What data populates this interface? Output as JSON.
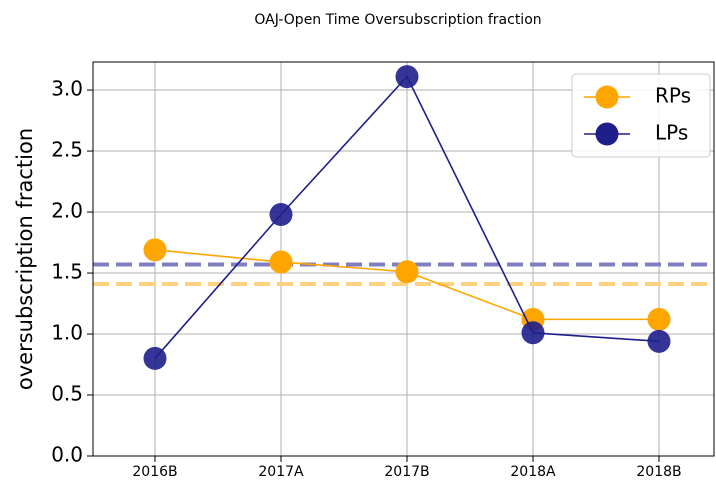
{
  "chart_data": {
    "type": "line",
    "title": "OAJ-Open Time Oversubscription fraction",
    "y_label": "oversubscription fraction",
    "categories": [
      "2016B",
      "2017A",
      "2017B",
      "2018A",
      "2018B"
    ],
    "series": [
      {
        "name": "RPs",
        "color": "#ffa500",
        "values": [
          1.69,
          1.59,
          1.51,
          1.12,
          1.12
        ]
      },
      {
        "name": "LPs",
        "color": "#1f1f8c",
        "values": [
          0.8,
          1.98,
          3.11,
          1.01,
          0.94
        ]
      }
    ],
    "hlines": [
      {
        "value": 1.57,
        "color": "#7f7fbf"
      },
      {
        "value": 1.41,
        "color": "#ffd27f"
      }
    ],
    "ylim": [
      0,
      3.23
    ],
    "yticks": [
      {
        "value": 0,
        "label": "0.0"
      },
      {
        "value": 0.5,
        "label": "0.5"
      },
      {
        "value": 1,
        "label": "1.0"
      },
      {
        "value": 1.5,
        "label": "1.5"
      },
      {
        "value": 2,
        "label": "2.0"
      },
      {
        "value": 2.5,
        "label": "2.5"
      },
      {
        "value": 3,
        "label": "3.0"
      }
    ],
    "grid": true,
    "legend": "upper right"
  }
}
